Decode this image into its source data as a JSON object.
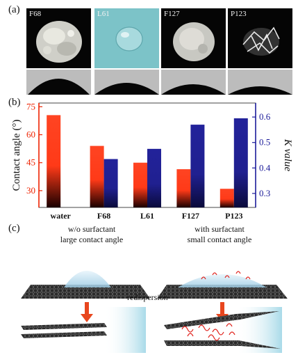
{
  "panel_labels": {
    "a": "(a)",
    "b": "(b)",
    "c": "(c)"
  },
  "panel_a": {
    "tiles": [
      {
        "name": "F68"
      },
      {
        "name": "L61"
      },
      {
        "name": "F127"
      },
      {
        "name": "P123"
      }
    ]
  },
  "chart_data": {
    "type": "bar",
    "categories": [
      "water",
      "F68",
      "L61",
      "F127",
      "P123"
    ],
    "ylabel": "Contact angle (°)",
    "y2label": "K value",
    "ylim": [
      21,
      77
    ],
    "y2lim": [
      0.245,
      0.655
    ],
    "yticks": [
      30,
      45,
      60,
      75
    ],
    "y2ticks": [
      0.3,
      0.4,
      0.5,
      0.6
    ],
    "series": [
      {
        "axis": "left",
        "color": "#ff4422",
        "values": [
          70.5,
          54,
          45,
          41.5,
          31
        ]
      },
      {
        "axis": "right",
        "color": "#22229a",
        "values": [
          null,
          0.435,
          0.475,
          0.57,
          0.595
        ]
      }
    ],
    "colors": {
      "left_axis": "#ee2200",
      "right_axis": "#1a1a99",
      "left_dark": "#1a0000",
      "right_dark": "#0a0a3a"
    }
  },
  "panel_c": {
    "left_caption_1": "w/o surfactant",
    "left_caption_2": "large contact angle",
    "right_caption_1": "with surfactant",
    "right_caption_2": "small contact angle",
    "middle_label": "redispersion"
  }
}
